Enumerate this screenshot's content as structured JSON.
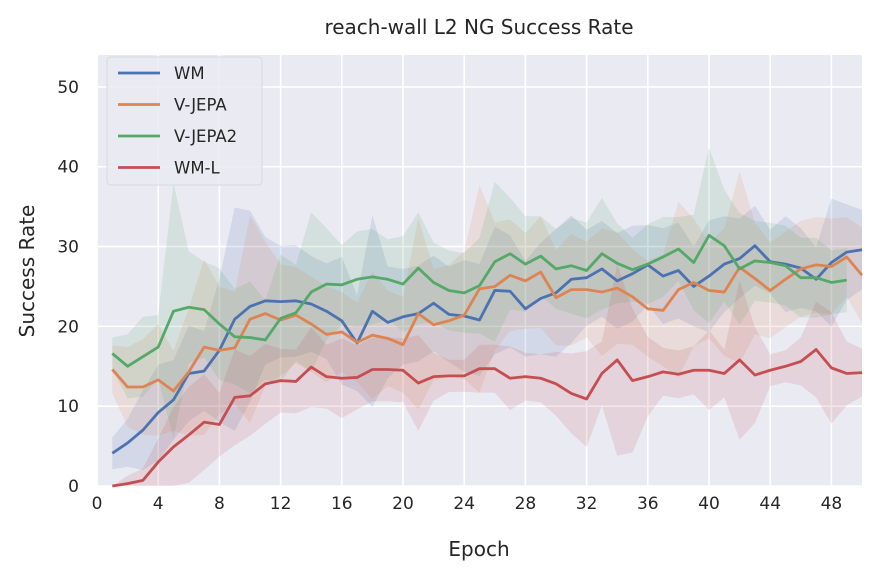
{
  "chart_data": {
    "type": "line",
    "title": "reach-wall L2 NG Success Rate",
    "xlabel": "Epoch",
    "ylabel": "Success Rate",
    "xlim": [
      0,
      50
    ],
    "ylim": [
      0,
      54
    ],
    "xticks": [
      0,
      4,
      8,
      12,
      16,
      20,
      24,
      28,
      32,
      36,
      40,
      44,
      48
    ],
    "yticks": [
      0,
      10,
      20,
      30,
      40,
      50
    ],
    "grid": true,
    "background": "#eaeaf2",
    "legend_position": "top-left",
    "series": [
      {
        "name": "WM",
        "color": "#4c72b0",
        "x_start": 1,
        "values": [
          4.1,
          5.4,
          7.0,
          9.2,
          10.8,
          14.1,
          14.4,
          17.0,
          20.9,
          22.5,
          23.2,
          23.1,
          23.2,
          22.8,
          21.9,
          20.7,
          17.9,
          21.9,
          20.5,
          21.2,
          21.6,
          22.9,
          21.5,
          21.3,
          20.8,
          24.5,
          24.4,
          22.2,
          23.5,
          24.2,
          25.9,
          26.1,
          27.2,
          25.7,
          26.6,
          27.7,
          26.3,
          27.0,
          25.0,
          26.3,
          27.8,
          28.5,
          30.1,
          28.1,
          27.8,
          27.3,
          25.9,
          28.0,
          29.3,
          29.6
        ],
        "band": [
          2,
          3,
          5,
          6,
          5,
          6,
          5,
          9,
          14,
          12,
          8,
          7,
          7,
          6,
          6,
          8,
          6,
          12,
          7,
          6,
          6,
          6,
          6,
          7,
          7,
          8,
          7,
          6,
          7,
          8,
          8,
          6,
          6,
          6,
          6,
          5,
          6,
          6,
          5,
          7,
          6,
          5,
          5,
          4,
          6,
          5,
          4,
          8,
          6,
          5
        ]
      },
      {
        "name": "V-JEPA",
        "color": "#dd8452",
        "x_start": 1,
        "values": [
          14.6,
          12.4,
          12.4,
          13.3,
          11.9,
          14.3,
          17.4,
          17.0,
          17.3,
          20.9,
          21.6,
          20.8,
          21.4,
          20.3,
          19.0,
          19.3,
          18.0,
          18.9,
          18.5,
          17.7,
          21.6,
          20.2,
          20.7,
          21.4,
          24.7,
          25.0,
          26.4,
          25.7,
          26.8,
          23.6,
          24.6,
          24.6,
          24.3,
          24.8,
          23.7,
          22.2,
          22.0,
          24.6,
          25.5,
          24.5,
          24.3,
          27.4,
          26.0,
          24.5,
          25.9,
          27.2,
          27.7,
          27.5,
          28.7,
          26.4
        ],
        "band": [
          3,
          5,
          6,
          7,
          5,
          8,
          11,
          8,
          7,
          13,
          9,
          7,
          6,
          6,
          6,
          5,
          5,
          8,
          6,
          6,
          12,
          7,
          7,
          8,
          13,
          8,
          7,
          6,
          7,
          6,
          7,
          6,
          8,
          7,
          6,
          6,
          7,
          11,
          8,
          6,
          8,
          12,
          7,
          6,
          6,
          6,
          6,
          6,
          5,
          6
        ]
      },
      {
        "name": "V-JEPA2",
        "color": "#55a868",
        "x_start": 1,
        "values": [
          16.6,
          15.0,
          16.2,
          17.4,
          21.9,
          22.4,
          22.1,
          20.3,
          18.7,
          18.6,
          18.3,
          21.0,
          21.7,
          24.3,
          25.3,
          25.2,
          25.9,
          26.2,
          25.9,
          25.3,
          27.3,
          25.5,
          24.5,
          24.2,
          25.1,
          28.1,
          29.1,
          27.8,
          28.8,
          27.2,
          27.6,
          27.0,
          29.1,
          27.9,
          27.1,
          27.8,
          28.7,
          29.7,
          28.0,
          31.4,
          30.1,
          27.2,
          28.2,
          28.0,
          27.6,
          26.1,
          26.1,
          25.5,
          25.8
        ],
        "band": [
          2,
          4,
          5,
          4,
          16,
          7,
          6,
          7,
          6,
          7,
          5,
          8,
          6,
          10,
          7,
          5,
          6,
          6,
          5,
          6,
          7,
          5,
          5,
          5,
          6,
          10,
          7,
          6,
          5,
          5,
          6,
          6,
          7,
          5,
          4,
          5,
          5,
          4,
          6,
          11,
          7,
          7,
          5,
          5,
          5,
          5,
          5,
          4,
          4
        ]
      },
      {
        "name": "WM-L",
        "color": "#c44e52",
        "x_start": 1,
        "values": [
          0.0,
          0.3,
          0.7,
          3.0,
          4.9,
          6.4,
          8.0,
          7.7,
          11.1,
          11.3,
          12.8,
          13.2,
          13.1,
          14.9,
          13.7,
          13.5,
          13.6,
          14.6,
          14.6,
          14.5,
          12.9,
          13.7,
          13.8,
          13.8,
          14.7,
          14.7,
          13.5,
          13.7,
          13.5,
          12.8,
          11.6,
          10.9,
          14.1,
          15.8,
          13.2,
          13.7,
          14.3,
          14.0,
          14.5,
          14.5,
          14.1,
          15.8,
          13.9,
          14.5,
          15.0,
          15.6,
          17.1,
          14.8,
          14.1,
          14.2
        ],
        "band": [
          0,
          1,
          1.5,
          3,
          5,
          6,
          6,
          4,
          6,
          5,
          5,
          4,
          4,
          5,
          4,
          5,
          4,
          4,
          4,
          4,
          6,
          3,
          2,
          2,
          3,
          3,
          4,
          3,
          3,
          4,
          5,
          6,
          4,
          12,
          9,
          5,
          3,
          3,
          3,
          5,
          3,
          10,
          6,
          2,
          2,
          3,
          6,
          7,
          4,
          3
        ]
      }
    ]
  }
}
